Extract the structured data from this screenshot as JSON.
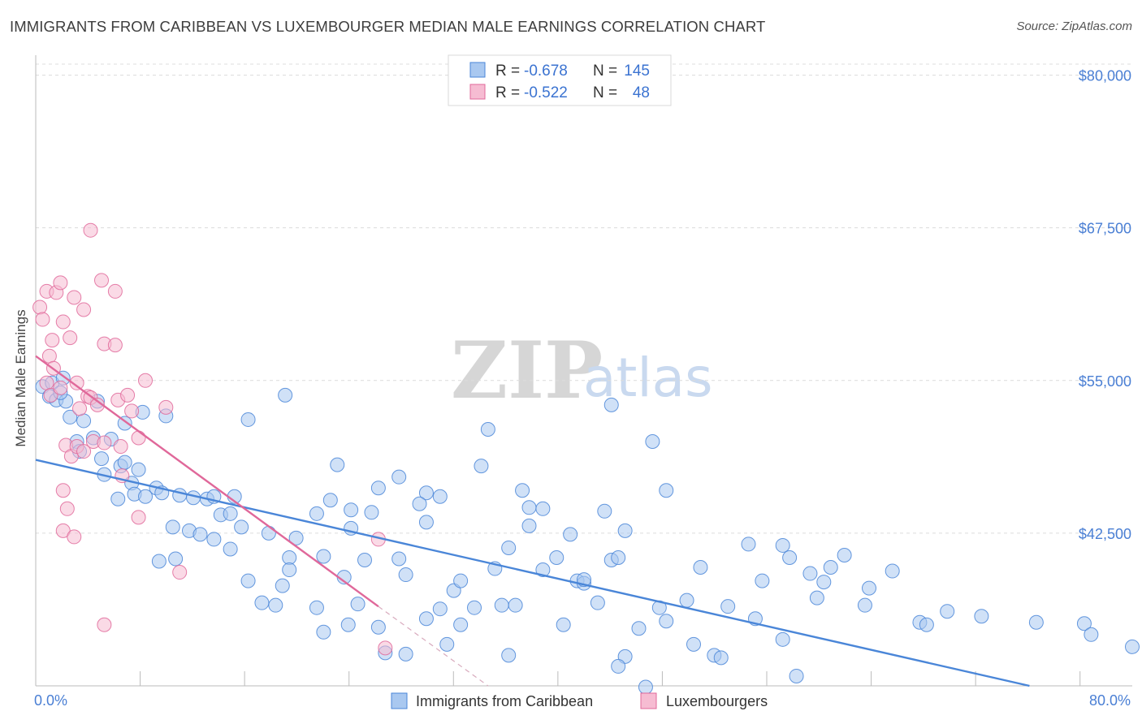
{
  "title": "IMMIGRANTS FROM CARIBBEAN VS LUXEMBOURGER MEDIAN MALE EARNINGS CORRELATION CHART",
  "source": "Source: ZipAtlas.com",
  "watermark": {
    "zip": "ZIP",
    "atlas": "atlas"
  },
  "colors": {
    "blue": "#4a86d8",
    "blue_fill": "#a9c8f0",
    "pink": "#e0689a",
    "pink_fill": "#f6bcd2",
    "axis_text": "#4a7fd4",
    "grid": "#dcdcdc"
  },
  "legend": {
    "rows": [
      {
        "r_label": "R = ",
        "r_value": "-0.678",
        "n_label": "N = ",
        "n_value": "145"
      },
      {
        "r_label": "R = ",
        "r_value": "-0.522",
        "n_label": "N = ",
        "n_value": "48"
      }
    ]
  },
  "bottom_legend": [
    "Immigrants from Caribbean",
    "Luxembourgers"
  ],
  "chart_data": {
    "type": "scatter",
    "title": "IMMIGRANTS FROM CARIBBEAN VS LUXEMBOURGER MEDIAN MALE EARNINGS CORRELATION CHART",
    "xlabel": "",
    "ylabel": "Median Male Earnings",
    "xlim": [
      0,
      80
    ],
    "ylim": [
      30000,
      81500
    ],
    "x_tick_labels": [
      "0.0%",
      "80.0%"
    ],
    "y_ticks": [
      42500,
      55000,
      67500,
      80000
    ],
    "y_tick_labels": [
      "$42,500",
      "$55,000",
      "$67,500",
      "$80,000"
    ],
    "grid": true,
    "legend_position": "top-center",
    "series": [
      {
        "name": "Immigrants from Caribbean",
        "color": "#4a86d8",
        "trend": {
          "x0": 0,
          "y0": 48500,
          "x1": 72.5,
          "y1": 30000
        },
        "points": [
          [
            0.5,
            54500
          ],
          [
            1.2,
            54800
          ],
          [
            1.0,
            53700
          ],
          [
            1.5,
            53400
          ],
          [
            2.0,
            55200
          ],
          [
            2.2,
            53300
          ],
          [
            1.8,
            54000
          ],
          [
            2.5,
            52000
          ],
          [
            3.5,
            51700
          ],
          [
            4.5,
            53300
          ],
          [
            3.0,
            50000
          ],
          [
            4.2,
            50300
          ],
          [
            3.2,
            49200
          ],
          [
            4.8,
            48600
          ],
          [
            5.5,
            50200
          ],
          [
            5.0,
            47300
          ],
          [
            6.2,
            48000
          ],
          [
            6.5,
            48300
          ],
          [
            7.0,
            46600
          ],
          [
            7.5,
            47700
          ],
          [
            6.0,
            45300
          ],
          [
            7.2,
            45700
          ],
          [
            8.0,
            45500
          ],
          [
            8.8,
            46200
          ],
          [
            9.2,
            45800
          ],
          [
            10.5,
            45600
          ],
          [
            11.5,
            45400
          ],
          [
            12.5,
            45300
          ],
          [
            13.0,
            45500
          ],
          [
            14.5,
            45500
          ],
          [
            6.5,
            51500
          ],
          [
            9.5,
            52100
          ],
          [
            7.8,
            52400
          ],
          [
            15.5,
            51800
          ],
          [
            18.2,
            53800
          ],
          [
            10.0,
            43000
          ],
          [
            11.2,
            42700
          ],
          [
            12.0,
            42400
          ],
          [
            13.5,
            44000
          ],
          [
            14.2,
            44100
          ],
          [
            10.2,
            40400
          ],
          [
            9.0,
            40200
          ],
          [
            13.0,
            42000
          ],
          [
            14.2,
            41200
          ],
          [
            15.0,
            43000
          ],
          [
            17.0,
            42500
          ],
          [
            19.0,
            42100
          ],
          [
            20.5,
            44100
          ],
          [
            21.5,
            45200
          ],
          [
            23.0,
            44400
          ],
          [
            24.5,
            44200
          ],
          [
            15.5,
            38600
          ],
          [
            16.5,
            36800
          ],
          [
            17.5,
            36600
          ],
          [
            18.0,
            38200
          ],
          [
            20.5,
            36400
          ],
          [
            21.0,
            34400
          ],
          [
            22.5,
            38900
          ],
          [
            22.8,
            35000
          ],
          [
            23.5,
            36700
          ],
          [
            18.5,
            40500
          ],
          [
            21.0,
            40600
          ],
          [
            18.5,
            39500
          ],
          [
            23.0,
            42900
          ],
          [
            24.0,
            40300
          ],
          [
            22.0,
            48100
          ],
          [
            25.0,
            46200
          ],
          [
            26.5,
            47100
          ],
          [
            26.5,
            40400
          ],
          [
            27.0,
            39100
          ],
          [
            28.5,
            45800
          ],
          [
            28.0,
            44900
          ],
          [
            28.5,
            43400
          ],
          [
            29.5,
            45500
          ],
          [
            30.5,
            37800
          ],
          [
            31.0,
            38600
          ],
          [
            29.5,
            36300
          ],
          [
            28.5,
            35500
          ],
          [
            30.0,
            33400
          ],
          [
            31.0,
            35000
          ],
          [
            27.0,
            32600
          ],
          [
            25.0,
            34800
          ],
          [
            25.5,
            32700
          ],
          [
            32.0,
            36400
          ],
          [
            33.5,
            39600
          ],
          [
            34.0,
            36600
          ],
          [
            34.5,
            32500
          ],
          [
            35.0,
            36600
          ],
          [
            36.0,
            43100
          ],
          [
            37.0,
            39500
          ],
          [
            36.0,
            44600
          ],
          [
            34.5,
            41300
          ],
          [
            38.5,
            35000
          ],
          [
            39.5,
            38600
          ],
          [
            38.0,
            40500
          ],
          [
            39.0,
            42400
          ],
          [
            42.0,
            40300
          ],
          [
            41.5,
            44300
          ],
          [
            42.5,
            40500
          ],
          [
            43.0,
            42700
          ],
          [
            40.0,
            38400
          ],
          [
            40.0,
            38700
          ],
          [
            41.0,
            36800
          ],
          [
            44.0,
            34700
          ],
          [
            43.0,
            32400
          ],
          [
            42.5,
            31600
          ],
          [
            45.5,
            36400
          ],
          [
            46.0,
            35300
          ],
          [
            44.5,
            29900
          ],
          [
            47.5,
            37000
          ],
          [
            48.5,
            39700
          ],
          [
            48.0,
            33400
          ],
          [
            49.5,
            32500
          ],
          [
            50.0,
            32300
          ],
          [
            50.5,
            36500
          ],
          [
            52.0,
            41600
          ],
          [
            52.5,
            35500
          ],
          [
            53.0,
            38600
          ],
          [
            54.5,
            41500
          ],
          [
            54.5,
            33800
          ],
          [
            55.0,
            40500
          ],
          [
            55.5,
            30800
          ],
          [
            56.5,
            39200
          ],
          [
            57.0,
            37200
          ],
          [
            57.5,
            38500
          ],
          [
            58.0,
            39700
          ],
          [
            59.0,
            40700
          ],
          [
            60.5,
            36600
          ],
          [
            62.5,
            39400
          ],
          [
            64.5,
            35200
          ],
          [
            65.0,
            35000
          ],
          [
            66.5,
            36100
          ],
          [
            69.0,
            35700
          ],
          [
            73.0,
            35200
          ],
          [
            76.5,
            35100
          ],
          [
            77.0,
            34200
          ],
          [
            80.0,
            33200
          ],
          [
            60.8,
            38000
          ],
          [
            42.0,
            53000
          ],
          [
            45.0,
            50000
          ],
          [
            46.0,
            46000
          ],
          [
            33.0,
            51000
          ],
          [
            32.5,
            48000
          ],
          [
            35.5,
            46000
          ],
          [
            37.0,
            44500
          ]
        ]
      },
      {
        "name": "Luxembourgers",
        "color": "#e0689a",
        "trend": {
          "x0": 0,
          "y0": 57000,
          "x1": 25,
          "y1": 36500,
          "dashed_to": {
            "x": 33,
            "y": 30000
          }
        },
        "points": [
          [
            0.3,
            61000
          ],
          [
            0.5,
            60000
          ],
          [
            0.8,
            62300
          ],
          [
            1.2,
            58300
          ],
          [
            1.5,
            62200
          ],
          [
            1.0,
            57000
          ],
          [
            1.3,
            56000
          ],
          [
            0.8,
            54800
          ],
          [
            1.1,
            53800
          ],
          [
            1.8,
            54400
          ],
          [
            1.8,
            63000
          ],
          [
            2.0,
            59800
          ],
          [
            2.5,
            58500
          ],
          [
            2.8,
            61800
          ],
          [
            3.5,
            60800
          ],
          [
            3.0,
            54800
          ],
          [
            3.2,
            52700
          ],
          [
            3.8,
            53700
          ],
          [
            4.0,
            53600
          ],
          [
            4.5,
            53000
          ],
          [
            2.2,
            49700
          ],
          [
            2.6,
            48800
          ],
          [
            3.0,
            49600
          ],
          [
            3.5,
            49200
          ],
          [
            4.2,
            50000
          ],
          [
            5.0,
            49900
          ],
          [
            2.0,
            46000
          ],
          [
            2.3,
            44500
          ],
          [
            2.0,
            42700
          ],
          [
            2.8,
            42200
          ],
          [
            4.0,
            67300
          ],
          [
            4.8,
            63200
          ],
          [
            5.0,
            58000
          ],
          [
            5.8,
            57900
          ],
          [
            5.8,
            62300
          ],
          [
            6.0,
            53400
          ],
          [
            6.2,
            49600
          ],
          [
            6.3,
            47200
          ],
          [
            6.7,
            53800
          ],
          [
            7.5,
            50300
          ],
          [
            7.0,
            52500
          ],
          [
            8.0,
            55000
          ],
          [
            7.5,
            43800
          ],
          [
            9.5,
            52800
          ],
          [
            10.5,
            39300
          ],
          [
            5.0,
            35000
          ],
          [
            25.0,
            42000
          ],
          [
            25.5,
            33100
          ]
        ]
      }
    ]
  }
}
